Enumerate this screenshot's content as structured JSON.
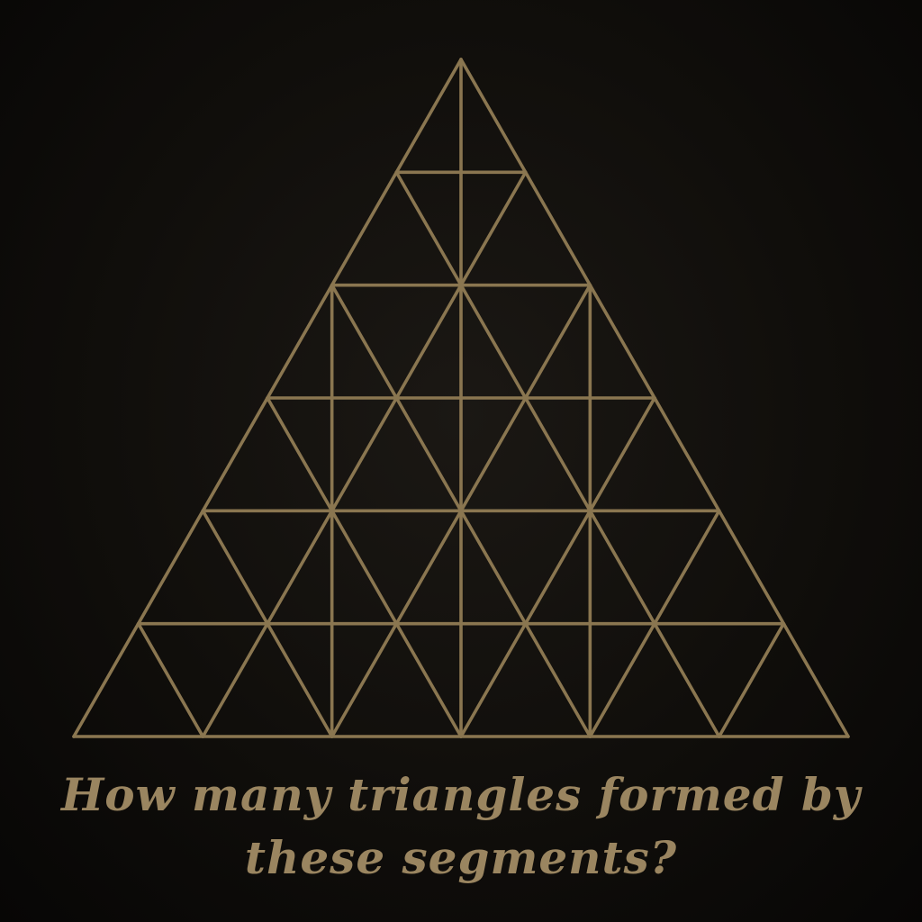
{
  "caption": {
    "line1": "How many triangles formed by",
    "line2": "these segments?"
  },
  "colors": {
    "background": "#0c0a08",
    "line": "#8a7650",
    "text": "#9a8560"
  }
}
